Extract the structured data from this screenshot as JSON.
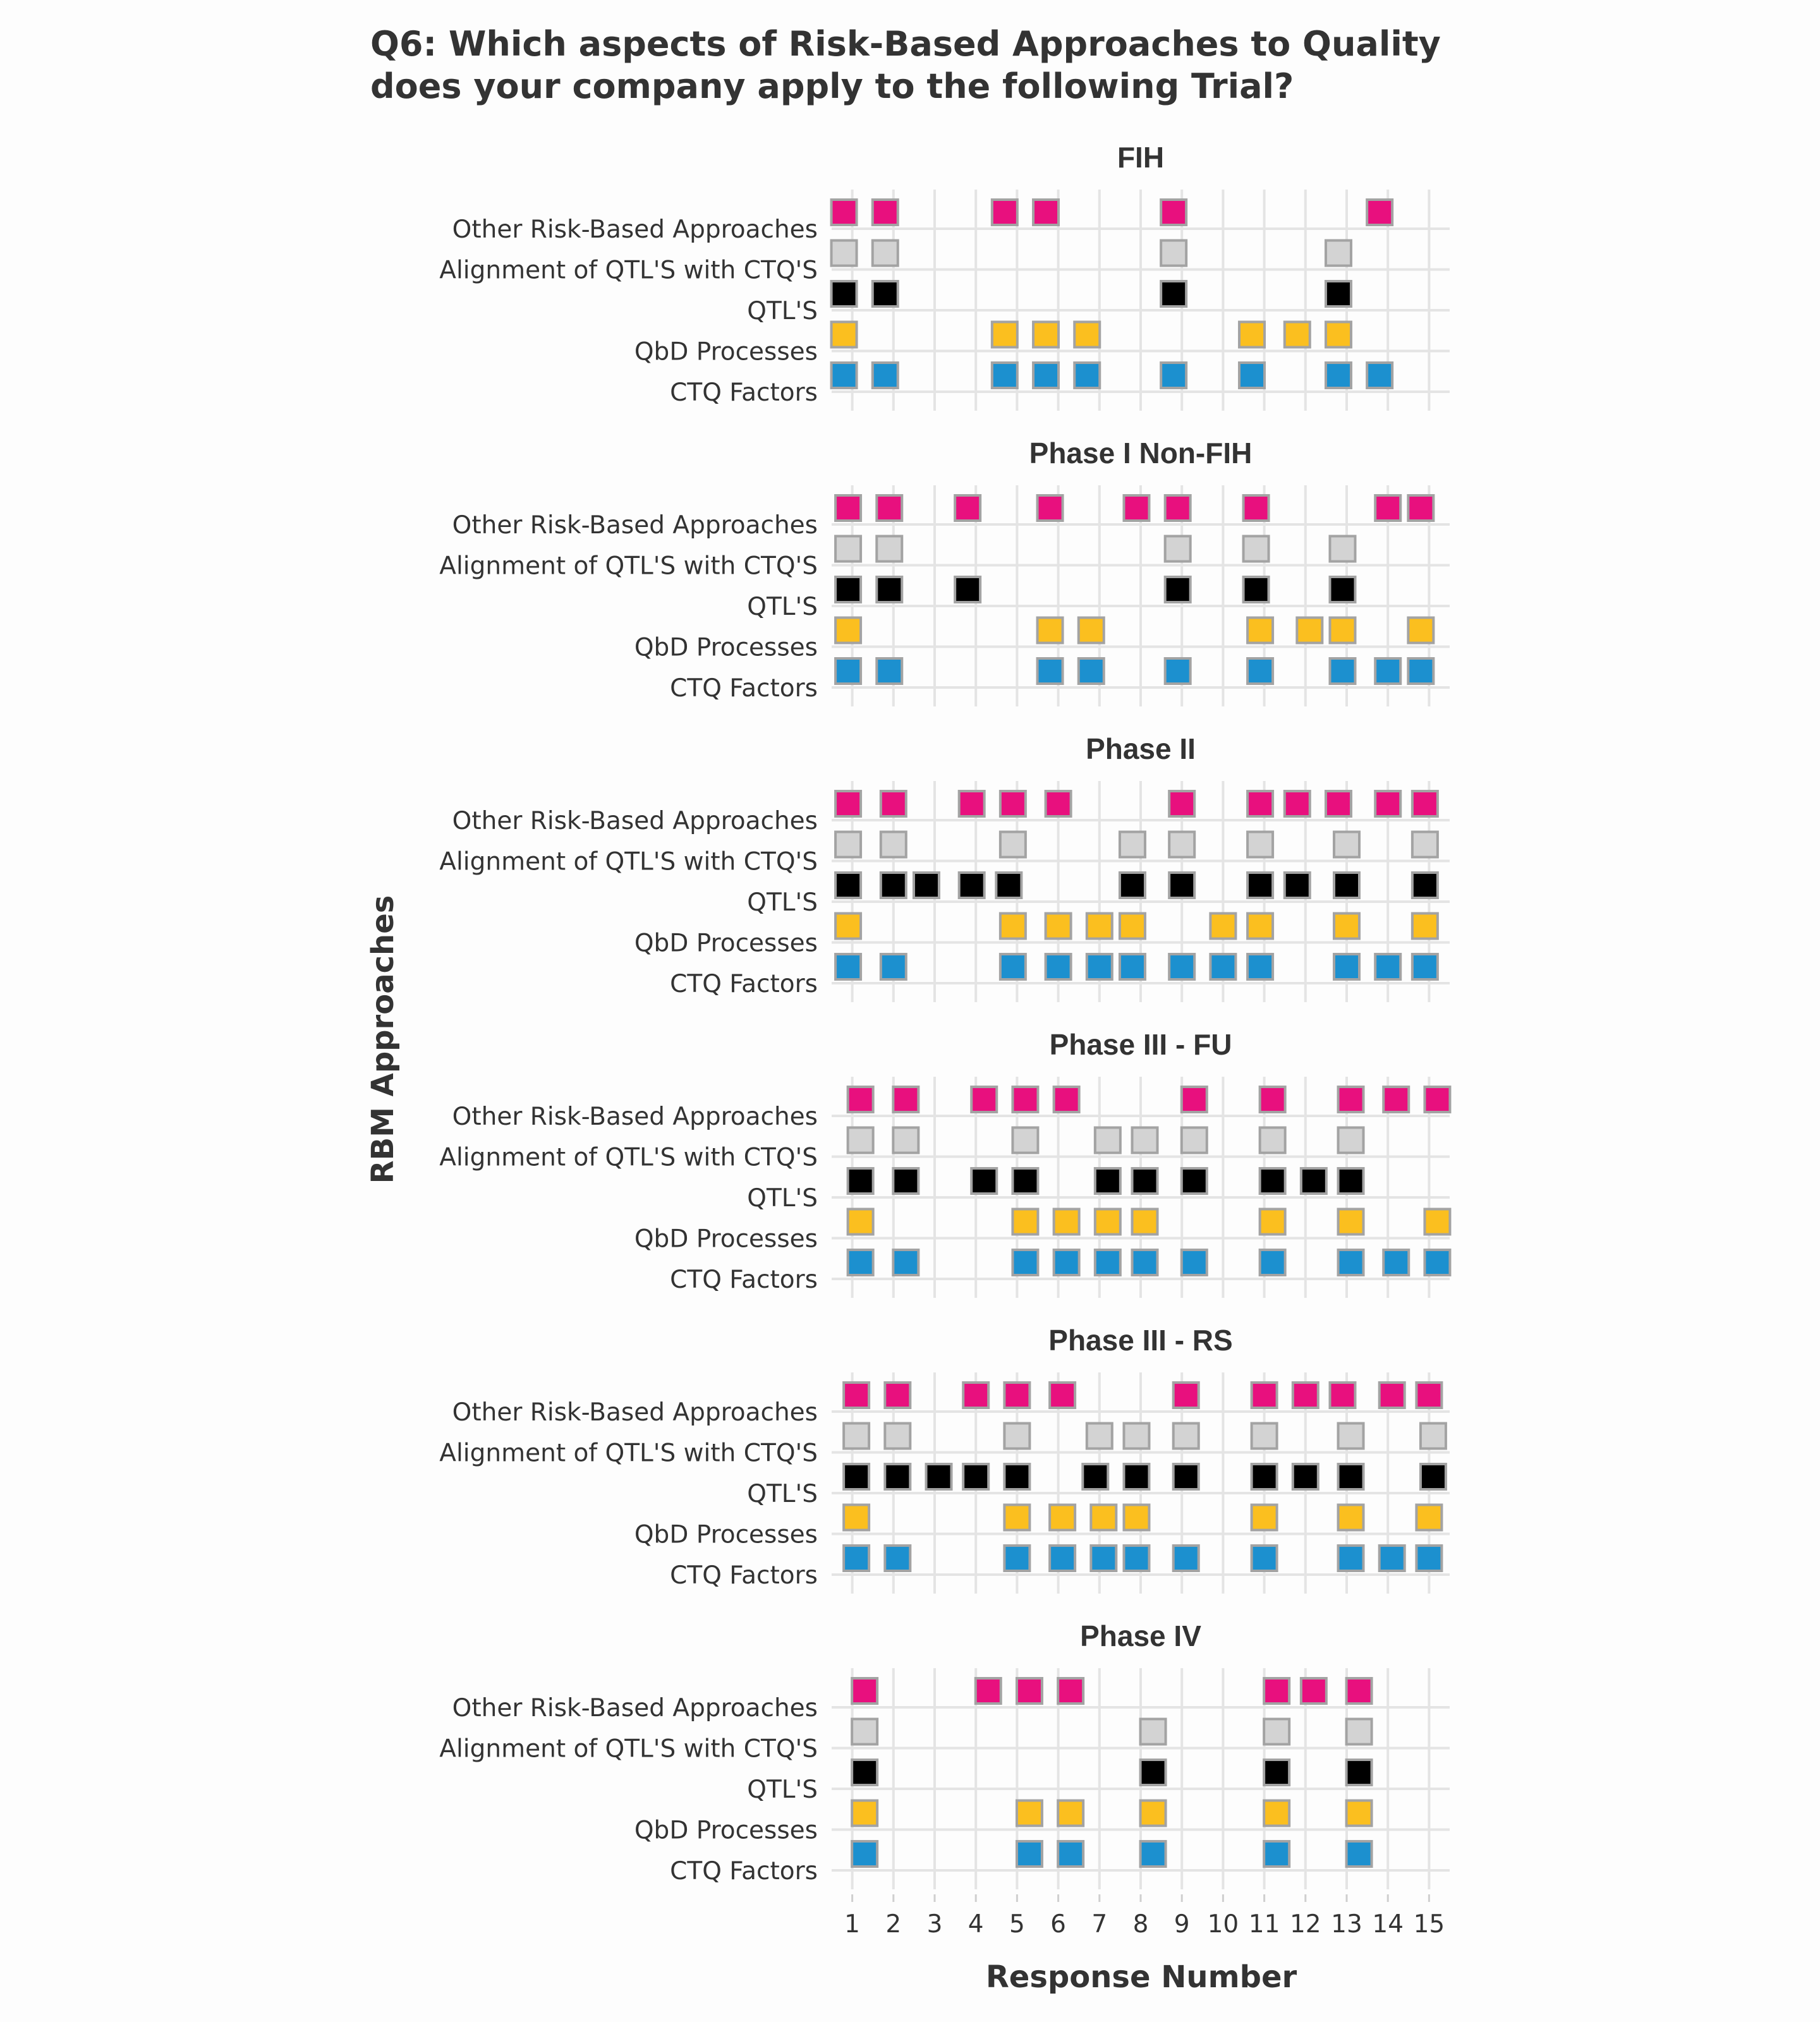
{
  "chart_data": {
    "type": "scatter",
    "title": "Q6: Which aspects of Risk-Based Approaches to Quality does your company apply to the following Trial?",
    "title_lines": [
      "Q6: Which aspects of Risk-Based Approaches to Quality",
      "does your company apply to the following Trial?"
    ],
    "xlabel": "Response Number",
    "ylabel": "RBM Approaches",
    "x_ticks": [
      "1",
      "2",
      "3",
      "4",
      "5",
      "6",
      "7",
      "8",
      "9",
      "10",
      "11",
      "12",
      "13",
      "14",
      "15"
    ],
    "xlim": [
      0.5,
      15.5
    ],
    "categories": [
      "Other Risk-Based Approaches",
      "Alignment of QTL'S with CTQ'S",
      "QTL'S",
      "QbD Processes",
      "CTQ Factors"
    ],
    "series_colors": {
      "Other Risk-Based Approaches": "#e8107e",
      "Alignment of QTL'S with CTQ'S": "#d3d3d3",
      "QTL'S": "#000000",
      "QbD Processes": "#fbbf1f",
      "CTQ Factors": "#1c90cf"
    },
    "marker_border_color": "#a3a3a3",
    "grid": true,
    "legend": "none",
    "panels": [
      {
        "name": "FIH",
        "series": [
          {
            "category": "Other Risk-Based Approaches",
            "x": [
              0.8,
              1.8,
              4.7,
              5.7,
              8.8,
              13.8
            ]
          },
          {
            "category": "Alignment of QTL'S with CTQ'S",
            "x": [
              0.8,
              1.8,
              8.8,
              12.8
            ]
          },
          {
            "category": "QTL'S",
            "x": [
              0.8,
              1.8,
              8.8,
              12.8
            ]
          },
          {
            "category": "QbD Processes",
            "x": [
              0.8,
              4.7,
              5.7,
              6.7,
              10.7,
              11.8,
              12.8
            ]
          },
          {
            "category": "CTQ Factors",
            "x": [
              0.8,
              1.8,
              4.7,
              5.7,
              6.7,
              8.8,
              10.7,
              12.8,
              13.8
            ]
          }
        ]
      },
      {
        "name": "Phase I Non-FIH",
        "series": [
          {
            "category": "Other Risk-Based Approaches",
            "x": [
              0.9,
              1.9,
              3.8,
              5.8,
              7.9,
              8.9,
              10.8,
              14.0,
              14.8
            ]
          },
          {
            "category": "Alignment of QTL'S with CTQ'S",
            "x": [
              0.9,
              1.9,
              8.9,
              10.8,
              12.9
            ]
          },
          {
            "category": "QTL'S",
            "x": [
              0.9,
              1.9,
              3.8,
              8.9,
              10.8,
              12.9
            ]
          },
          {
            "category": "QbD Processes",
            "x": [
              0.9,
              5.8,
              6.8,
              10.9,
              12.1,
              12.9,
              14.8
            ]
          },
          {
            "category": "CTQ Factors",
            "x": [
              0.9,
              1.9,
              5.8,
              6.8,
              8.9,
              10.9,
              12.9,
              14.0,
              14.8
            ]
          }
        ]
      },
      {
        "name": "Phase II",
        "series": [
          {
            "category": "Other Risk-Based Approaches",
            "x": [
              0.9,
              2.0,
              3.9,
              4.9,
              6.0,
              9.0,
              10.9,
              11.8,
              12.8,
              14.0,
              14.9
            ]
          },
          {
            "category": "Alignment of QTL'S with CTQ'S",
            "x": [
              0.9,
              2.0,
              4.9,
              7.8,
              9.0,
              10.9,
              13.0,
              14.9
            ]
          },
          {
            "category": "QTL'S",
            "x": [
              0.9,
              2.0,
              2.8,
              3.9,
              4.8,
              7.8,
              9.0,
              10.9,
              11.8,
              13.0,
              14.9
            ]
          },
          {
            "category": "QbD Processes",
            "x": [
              0.9,
              4.9,
              6.0,
              7.0,
              7.8,
              10.0,
              10.9,
              13.0,
              14.9
            ]
          },
          {
            "category": "CTQ Factors",
            "x": [
              0.9,
              2.0,
              4.9,
              6.0,
              7.0,
              7.8,
              9.0,
              10.0,
              10.9,
              13.0,
              14.0,
              14.9
            ]
          }
        ]
      },
      {
        "name": "Phase III - FU",
        "series": [
          {
            "category": "Other Risk-Based Approaches",
            "x": [
              1.2,
              2.3,
              4.2,
              5.2,
              6.2,
              9.3,
              11.2,
              13.1,
              14.2,
              15.2
            ]
          },
          {
            "category": "Alignment of QTL'S with CTQ'S",
            "x": [
              1.2,
              2.3,
              5.2,
              7.2,
              8.1,
              9.3,
              11.2,
              13.1
            ]
          },
          {
            "category": "QTL'S",
            "x": [
              1.2,
              2.3,
              4.2,
              5.2,
              7.2,
              8.1,
              9.3,
              11.2,
              12.2,
              13.1
            ]
          },
          {
            "category": "QbD Processes",
            "x": [
              1.2,
              5.2,
              6.2,
              7.2,
              8.1,
              11.2,
              13.1,
              15.2
            ]
          },
          {
            "category": "CTQ Factors",
            "x": [
              1.2,
              2.3,
              5.2,
              6.2,
              7.2,
              8.1,
              9.3,
              11.2,
              13.1,
              14.2,
              15.2
            ]
          }
        ]
      },
      {
        "name": "Phase III - RS",
        "series": [
          {
            "category": "Other Risk-Based Approaches",
            "x": [
              1.1,
              2.1,
              4.0,
              5.0,
              6.1,
              9.1,
              11.0,
              12.0,
              12.9,
              14.1,
              15.0
            ]
          },
          {
            "category": "Alignment of QTL'S with CTQ'S",
            "x": [
              1.1,
              2.1,
              5.0,
              7.0,
              7.9,
              9.1,
              11.0,
              13.1,
              15.1
            ]
          },
          {
            "category": "QTL'S",
            "x": [
              1.1,
              2.1,
              3.1,
              4.0,
              5.0,
              6.9,
              7.9,
              9.1,
              11.0,
              12.0,
              13.1,
              15.1
            ]
          },
          {
            "category": "QbD Processes",
            "x": [
              1.1,
              5.0,
              6.1,
              7.1,
              7.9,
              11.0,
              13.1,
              15.0
            ]
          },
          {
            "category": "CTQ Factors",
            "x": [
              1.1,
              2.1,
              5.0,
              6.1,
              7.1,
              7.9,
              9.1,
              11.0,
              13.1,
              14.1,
              15.0
            ]
          }
        ]
      },
      {
        "name": "Phase IV",
        "series": [
          {
            "category": "Other Risk-Based Approaches",
            "x": [
              1.3,
              4.3,
              5.3,
              6.3,
              11.3,
              12.2,
              13.3
            ]
          },
          {
            "category": "Alignment of QTL'S with CTQ'S",
            "x": [
              1.3,
              8.3,
              11.3,
              13.3
            ]
          },
          {
            "category": "QTL'S",
            "x": [
              1.3,
              8.3,
              11.3,
              13.3
            ]
          },
          {
            "category": "QbD Processes",
            "x": [
              1.3,
              5.3,
              6.3,
              8.3,
              11.3,
              13.3
            ]
          },
          {
            "category": "CTQ Factors",
            "x": [
              1.3,
              5.3,
              6.3,
              8.3,
              11.3,
              13.3
            ]
          }
        ]
      }
    ]
  }
}
